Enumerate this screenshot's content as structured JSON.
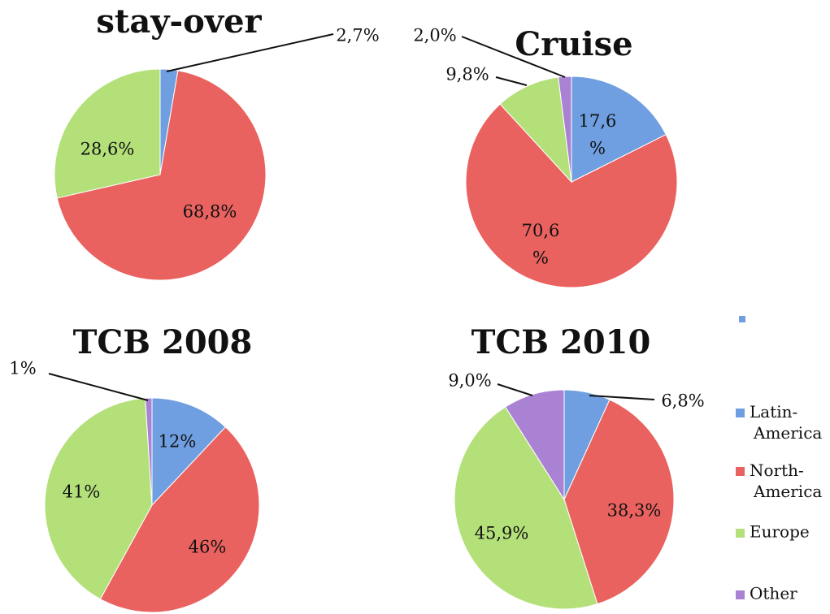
{
  "chart_data": [
    {
      "type": "pie",
      "title": "stay-over",
      "categories": [
        "Latin-America",
        "North-America",
        "Europe"
      ],
      "colors": [
        "#6f9fe0",
        "#e9625f",
        "#b4e07a"
      ],
      "values": [
        2.7,
        68.8,
        28.6
      ],
      "value_labels": [
        "2,7%",
        "68,8%",
        "28,6%"
      ]
    },
    {
      "type": "pie",
      "title": "Cruise",
      "categories": [
        "Latin-America",
        "North-America",
        "Europe",
        "Other"
      ],
      "colors": [
        "#6f9fe0",
        "#e9625f",
        "#b4e07a",
        "#a982d4"
      ],
      "values": [
        17.6,
        70.6,
        9.8,
        2.0
      ],
      "value_labels": [
        "17,6\n%",
        "70,6\n%",
        "9,8%",
        "2,0%"
      ]
    },
    {
      "type": "pie",
      "title": "TCB 2008",
      "categories": [
        "Latin-America",
        "North-America",
        "Europe",
        "Other"
      ],
      "colors": [
        "#6f9fe0",
        "#e9625f",
        "#b4e07a",
        "#a982d4"
      ],
      "values": [
        12,
        46,
        41,
        1
      ],
      "value_labels": [
        "12%",
        "46%",
        "41%",
        "1%"
      ]
    },
    {
      "type": "pie",
      "title": "TCB 2010",
      "categories": [
        "Latin-America",
        "North-America",
        "Europe",
        "Other"
      ],
      "colors": [
        "#6f9fe0",
        "#e9625f",
        "#b4e07a",
        "#a982d4"
      ],
      "values": [
        6.8,
        38.3,
        45.9,
        9.0
      ],
      "value_labels": [
        "6,8%",
        "38,3%",
        "45,9%",
        "9,0%"
      ],
      "legend": "right"
    }
  ]
}
